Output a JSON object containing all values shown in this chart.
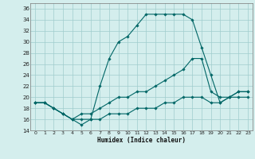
{
  "xlabel": "Humidex (Indice chaleur)",
  "xlim": [
    -0.5,
    23.5
  ],
  "ylim": [
    14,
    37
  ],
  "yticks": [
    14,
    16,
    18,
    20,
    22,
    24,
    26,
    28,
    30,
    32,
    34,
    36
  ],
  "xticks": [
    0,
    1,
    2,
    3,
    4,
    5,
    6,
    7,
    8,
    9,
    10,
    11,
    12,
    13,
    14,
    15,
    16,
    17,
    18,
    19,
    20,
    21,
    22,
    23
  ],
  "bg_color": "#d4eeed",
  "grid_color": "#a0cccc",
  "line_color": "#006666",
  "line1": [
    19,
    19,
    18,
    17,
    16,
    16,
    16,
    22,
    27,
    30,
    31,
    33,
    35,
    35,
    35,
    35,
    35,
    34,
    29,
    24,
    19,
    20,
    21,
    21
  ],
  "line2": [
    19,
    19,
    18,
    17,
    16,
    17,
    17,
    18,
    19,
    20,
    20,
    21,
    21,
    22,
    23,
    24,
    25,
    27,
    27,
    21,
    20,
    20,
    21,
    21
  ],
  "line3": [
    19,
    19,
    18,
    17,
    16,
    15,
    16,
    16,
    17,
    17,
    17,
    18,
    18,
    18,
    19,
    19,
    20,
    20,
    20,
    19,
    19,
    20,
    20,
    20
  ]
}
